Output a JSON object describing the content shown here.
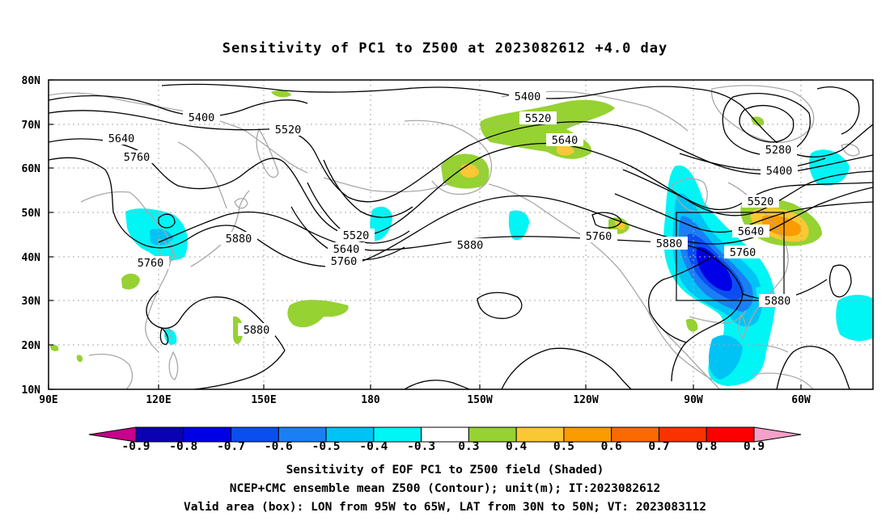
{
  "title": "Sensitivity of PC1 to Z500 at 2023082612 +4.0 day",
  "map": {
    "lat_labels": [
      "80N",
      "70N",
      "60N",
      "50N",
      "40N",
      "30N",
      "20N",
      "10N"
    ],
    "lon_labels": [
      "90E",
      "120E",
      "150E",
      "180",
      "150W",
      "120W",
      "90W",
      "60W"
    ],
    "contour_labels": [
      "5400",
      "5400",
      "5520",
      "5520",
      "5640",
      "5640",
      "5760",
      "5880",
      "5280",
      "5400",
      "5520",
      "5640",
      "5760",
      "5880",
      "5760",
      "5880",
      "5880",
      "5520",
      "5640",
      "5760",
      "5880",
      "5760"
    ],
    "valid_box": {
      "lon_west": "95W",
      "lon_east": "65W",
      "lat_south": "30N",
      "lat_north": "50N"
    }
  },
  "colorbar": {
    "labels": [
      "-0.9",
      "-0.8",
      "-0.7",
      "-0.6",
      "-0.5",
      "-0.4",
      "-0.3",
      "0.3",
      "0.4",
      "0.5",
      "0.6",
      "0.7",
      "0.8",
      "0.9"
    ],
    "colors": [
      "#0a00b4",
      "#0000e6",
      "#0b4ef0",
      "#1a7ff5",
      "#00c3f5",
      "#00f5f5",
      "#ffffff",
      "#96d232",
      "#fac832",
      "#fa9b00",
      "#fa6a00",
      "#fa3200",
      "#fa0000"
    ],
    "low_end_color": "#c8008c",
    "high_end_color": "#f5a0c8"
  },
  "captions": {
    "line1": "Sensitivity of EOF PC1 to Z500 field (Shaded)",
    "line2": "NCEP+CMC ensemble mean Z500 (Contour); unit(m); IT:2023082612",
    "line3": "Valid area (box): LON from 95W to 65W, LAT from 30N to 50N; VT: 2023083112"
  }
}
